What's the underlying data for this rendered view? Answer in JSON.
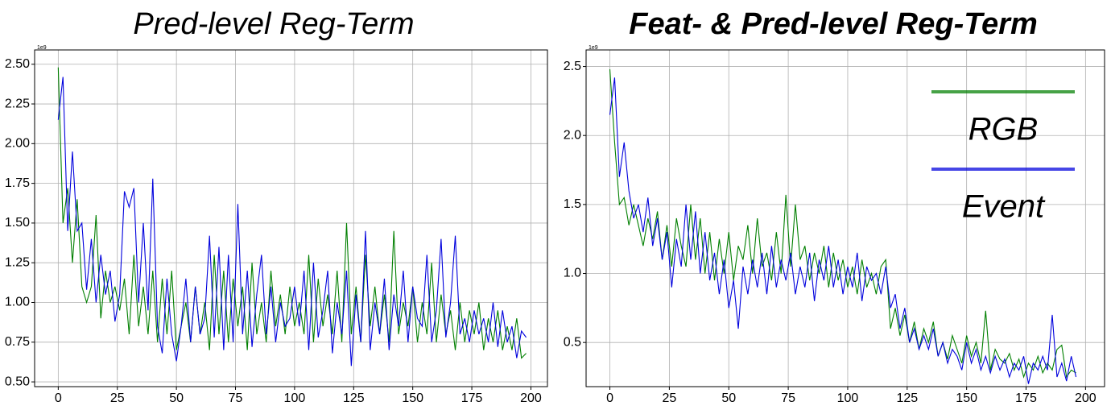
{
  "chart_data": [
    {
      "type": "line",
      "title": "Pred-level Reg-Term",
      "y_offset_label": "1e9",
      "x": [
        0,
        2,
        4,
        6,
        8,
        10,
        12,
        14,
        16,
        18,
        20,
        22,
        24,
        26,
        28,
        30,
        32,
        34,
        36,
        38,
        40,
        42,
        44,
        46,
        48,
        50,
        52,
        54,
        56,
        58,
        60,
        62,
        64,
        66,
        68,
        70,
        72,
        74,
        76,
        78,
        80,
        82,
        84,
        86,
        88,
        90,
        92,
        94,
        96,
        98,
        100,
        102,
        104,
        106,
        108,
        110,
        112,
        114,
        116,
        118,
        120,
        122,
        124,
        126,
        128,
        130,
        132,
        134,
        136,
        138,
        140,
        142,
        144,
        146,
        148,
        150,
        152,
        154,
        156,
        158,
        160,
        162,
        164,
        166,
        168,
        170,
        172,
        174,
        176,
        178,
        180,
        182,
        184,
        186,
        188,
        190,
        192,
        194,
        196,
        198
      ],
      "xlim": [
        -10,
        207
      ],
      "ylim": [
        0.47,
        2.59
      ],
      "xticks": [
        0,
        25,
        50,
        75,
        100,
        125,
        150,
        175,
        200
      ],
      "yticks": [
        {
          "value": 0.5,
          "label": "0.50"
        },
        {
          "value": 0.75,
          "label": "0.75"
        },
        {
          "value": 1,
          "label": "1.00"
        },
        {
          "value": 1.25,
          "label": "1.25"
        },
        {
          "value": 1.5,
          "label": "1.50"
        },
        {
          "value": 1.75,
          "label": "1.75"
        },
        {
          "value": 2,
          "label": "2.00"
        },
        {
          "value": 2.25,
          "label": "2.25"
        },
        {
          "value": 2.5,
          "label": "2.50"
        }
      ],
      "grid": true,
      "series": [
        {
          "color": "#007f00",
          "values": [
            2.48,
            1.5,
            1.72,
            1.25,
            1.65,
            1.1,
            1.0,
            1.1,
            1.55,
            0.9,
            1.2,
            1.0,
            1.1,
            0.95,
            1.15,
            0.8,
            1.3,
            0.85,
            1.1,
            0.8,
            1.2,
            0.75,
            1.15,
            0.8,
            1.2,
            0.7,
            0.85,
            1.0,
            0.75,
            1.1,
            0.8,
            1.0,
            0.7,
            1.3,
            0.8,
            1.2,
            0.75,
            1.15,
            0.85,
            1.1,
            0.7,
            1.25,
            0.8,
            1.0,
            0.75,
            1.2,
            0.85,
            1.05,
            0.8,
            1.1,
            0.85,
            1.0,
            0.8,
            1.3,
            0.75,
            1.15,
            0.85,
            1.05,
            0.8,
            1.2,
            0.75,
            1.5,
            0.8,
            1.1,
            0.75,
            1.3,
            0.85,
            1.1,
            0.8,
            1.05,
            0.75,
            1.45,
            0.8,
            1.0,
            0.85,
            1.1,
            0.75,
            1.0,
            0.8,
            1.25,
            0.75,
            1.05,
            0.8,
            0.95,
            0.7,
            1.0,
            0.75,
            0.95,
            0.8,
            1.0,
            0.7,
            0.9,
            0.75,
            0.95,
            0.7,
            0.85,
            0.7,
            0.9,
            0.65,
            0.68
          ]
        },
        {
          "color": "#0000dd",
          "values": [
            2.15,
            2.42,
            1.45,
            1.95,
            1.45,
            1.5,
            1.08,
            1.4,
            1.0,
            1.3,
            1.05,
            1.2,
            0.88,
            1.05,
            1.7,
            1.6,
            1.72,
            1.0,
            1.5,
            0.95,
            1.78,
            0.85,
            0.68,
            1.15,
            0.8,
            0.63,
            0.85,
            1.15,
            0.75,
            1.1,
            0.8,
            0.9,
            1.42,
            0.78,
            1.35,
            0.7,
            1.3,
            0.75,
            1.62,
            0.8,
            1.2,
            0.72,
            1.05,
            1.3,
            0.8,
            1.1,
            0.75,
            1.0,
            0.85,
            0.9,
            1.1,
            0.85,
            1.2,
            0.7,
            1.25,
            0.78,
            0.95,
            1.2,
            0.68,
            1.0,
            0.8,
            1.2,
            0.6,
            1.05,
            0.75,
            1.45,
            0.7,
            1.0,
            0.8,
            1.15,
            0.7,
            1.05,
            0.85,
            1.2,
            0.75,
            1.1,
            0.9,
            0.85,
            1.3,
            0.75,
            0.95,
            1.4,
            0.78,
            1.0,
            1.42,
            0.8,
            0.9,
            0.75,
            0.95,
            0.8,
            0.9,
            0.75,
            1.0,
            0.72,
            0.95,
            0.75,
            0.85,
            0.65,
            0.82,
            0.78
          ]
        }
      ]
    },
    {
      "type": "line",
      "title": "Feat- & Pred-level Reg-Term",
      "y_offset_label": "1e9",
      "x": [
        0,
        2,
        4,
        6,
        8,
        10,
        12,
        14,
        16,
        18,
        20,
        22,
        24,
        26,
        28,
        30,
        32,
        34,
        36,
        38,
        40,
        42,
        44,
        46,
        48,
        50,
        52,
        54,
        56,
        58,
        60,
        62,
        64,
        66,
        68,
        70,
        72,
        74,
        76,
        78,
        80,
        82,
        84,
        86,
        88,
        90,
        92,
        94,
        96,
        98,
        100,
        102,
        104,
        106,
        108,
        110,
        112,
        114,
        116,
        118,
        120,
        122,
        124,
        126,
        128,
        130,
        132,
        134,
        136,
        138,
        140,
        142,
        144,
        146,
        148,
        150,
        152,
        154,
        156,
        158,
        160,
        162,
        164,
        166,
        168,
        170,
        172,
        174,
        176,
        178,
        180,
        182,
        184,
        186,
        188,
        190,
        192,
        194,
        196
      ],
      "xlim": [
        -10,
        208
      ],
      "ylim": [
        0.18,
        2.62
      ],
      "xticks": [
        0,
        25,
        50,
        75,
        100,
        125,
        150,
        175,
        200
      ],
      "yticks": [
        0.5,
        {
          "value": 1,
          "label": "1.0"
        },
        1.5,
        {
          "value": 2,
          "label": "2.0"
        },
        2.5
      ],
      "grid": true,
      "legend": "upper right",
      "series": [
        {
          "name": "RGB",
          "color": "#007f00",
          "values": [
            2.48,
            1.95,
            1.5,
            1.55,
            1.35,
            1.5,
            1.35,
            1.2,
            1.4,
            1.25,
            1.45,
            1.1,
            1.35,
            1.05,
            1.4,
            1.2,
            1.05,
            1.5,
            1.1,
            1.4,
            1.0,
            1.3,
            0.95,
            1.25,
            1.0,
            1.3,
            0.95,
            1.2,
            1.1,
            1.35,
            1.0,
            1.4,
            1.05,
            1.15,
            0.95,
            1.3,
            1.0,
            1.57,
            1.05,
            1.5,
            1.1,
            1.2,
            0.95,
            1.15,
            1.0,
            1.2,
            0.9,
            1.15,
            0.95,
            1.1,
            0.9,
            1.05,
            0.85,
            1.1,
            0.9,
            1.0,
            0.85,
            1.05,
            1.1,
            0.6,
            0.75,
            0.55,
            0.7,
            0.5,
            0.65,
            0.45,
            0.6,
            0.5,
            0.65,
            0.4,
            0.5,
            0.38,
            0.55,
            0.45,
            0.35,
            0.55,
            0.4,
            0.5,
            0.35,
            0.73,
            0.3,
            0.45,
            0.38,
            0.35,
            0.42,
            0.3,
            0.38,
            0.25,
            0.35,
            0.3,
            0.4,
            0.28,
            0.35,
            0.3,
            0.45,
            0.48,
            0.25,
            0.3,
            0.28
          ]
        },
        {
          "name": "Event",
          "color": "#0000dd",
          "values": [
            2.15,
            2.42,
            1.7,
            1.95,
            1.6,
            1.4,
            1.5,
            1.3,
            1.55,
            1.2,
            1.4,
            1.1,
            1.3,
            0.9,
            1.25,
            1.05,
            1.5,
            1.1,
            1.45,
            1.0,
            1.3,
            0.95,
            1.15,
            0.85,
            1.1,
            0.75,
            0.95,
            0.6,
            1.05,
            0.85,
            1.1,
            0.9,
            1.15,
            0.85,
            1.2,
            0.9,
            1.1,
            0.95,
            1.15,
            0.85,
            1.05,
            0.9,
            1.15,
            0.8,
            1.1,
            0.95,
            1.2,
            0.9,
            1.1,
            0.85,
            1.05,
            0.9,
            1.15,
            0.8,
            1.05,
            0.95,
            1.0,
            0.85,
            1.05,
            0.75,
            0.85,
            0.6,
            0.75,
            0.5,
            0.6,
            0.45,
            0.55,
            0.45,
            0.6,
            0.4,
            0.5,
            0.35,
            0.45,
            0.4,
            0.3,
            0.5,
            0.35,
            0.45,
            0.3,
            0.4,
            0.28,
            0.4,
            0.3,
            0.38,
            0.25,
            0.35,
            0.3,
            0.4,
            0.2,
            0.35,
            0.3,
            0.4,
            0.3,
            0.7,
            0.25,
            0.35,
            0.22,
            0.4,
            0.25
          ]
        }
      ]
    }
  ]
}
